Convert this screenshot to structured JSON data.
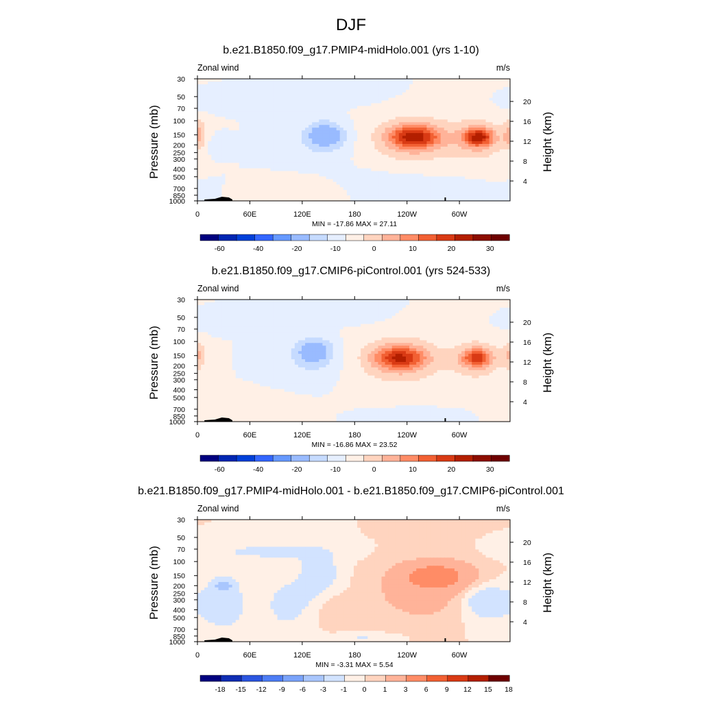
{
  "figure_title": "DJF",
  "colors": {
    "full": [
      "#00007f",
      "#0026b2",
      "#0040d9",
      "#3366ff",
      "#6699ff",
      "#99bbff",
      "#c6dbff",
      "#e6efff",
      "#fff0e6",
      "#ffd4bf",
      "#ffb399",
      "#ff8c66",
      "#f26033",
      "#d93a14",
      "#b31f00",
      "#8c0d00",
      "#6e0000"
    ],
    "diff": [
      "#00007f",
      "#0f2db3",
      "#2b55e0",
      "#4d7df5",
      "#7aa3fa",
      "#a9c6fd",
      "#d2e3ff",
      "#fff0e6",
      "#ffd4bf",
      "#ffb399",
      "#ff8c66",
      "#f26033",
      "#d93a14",
      "#b31f00",
      "#6e0000"
    ]
  },
  "chart_data": [
    {
      "type": "contour",
      "title": "b.e21.B1850.f09_g17.PMIP4-midHolo.001 (yrs 1-10)",
      "variable": "Zonal wind",
      "units": "m/s",
      "ylabel": "Pressure (mb)",
      "y2label": "Height (km)",
      "x_ticks": [
        "0",
        "60E",
        "120E",
        "180",
        "120W",
        "60W"
      ],
      "y_ticks": [
        "30",
        "50",
        "70",
        "100",
        "150",
        "200",
        "250",
        "300",
        "400",
        "500",
        "700",
        "850",
        "1000"
      ],
      "y2_ticks": [
        "20",
        "16",
        "12",
        "8",
        "4"
      ],
      "stats": "MIN = -17.86  MAX =  27.11",
      "cb_labels": [
        "-60",
        "-40",
        "-20",
        "-10",
        "0",
        "10",
        "20",
        "30"
      ],
      "palette": "full",
      "features": [
        {
          "lon": 147,
          "p": 150,
          "rx": 20,
          "rp": 0.35,
          "v": -14
        },
        {
          "lon": 140,
          "p": 180,
          "rx": 34,
          "rp": 0.55,
          "v": -5
        },
        {
          "lon": 248,
          "p": 160,
          "rx": 28,
          "rp": 0.32,
          "v": 25
        },
        {
          "lon": 248,
          "p": 170,
          "rx": 50,
          "rp": 0.75,
          "v": 10
        },
        {
          "lon": 322,
          "p": 160,
          "rx": 16,
          "rp": 0.25,
          "v": 24
        },
        {
          "lon": 322,
          "p": 170,
          "rx": 30,
          "rp": 0.6,
          "v": 10
        },
        {
          "lon": 0,
          "p": 150,
          "rx": 10,
          "rp": 0.4,
          "v": 12
        },
        {
          "lon": 128,
          "p": 750,
          "rx": 40,
          "rp": 0.35,
          "v": 4
        },
        {
          "lon": 190,
          "p": 40,
          "rx": 30,
          "rp": 0.35,
          "v": -4
        },
        {
          "lon": 20,
          "p": 200,
          "rx": 12,
          "rp": 0.25,
          "v": -3
        },
        {
          "lon": 220,
          "p": 620,
          "rx": 70,
          "rp": 0.4,
          "v": -3
        },
        {
          "lon": 20,
          "p": 60,
          "rx": 30,
          "rp": 0.2,
          "v": -3
        }
      ]
    },
    {
      "type": "contour",
      "title": "b.e21.B1850.f09_g17.CMIP6-piControl.001 (yrs 524-533)",
      "variable": "Zonal wind",
      "units": "m/s",
      "ylabel": "Pressure (mb)",
      "y2label": "Height (km)",
      "x_ticks": [
        "0",
        "60E",
        "120E",
        "180",
        "120W",
        "60W"
      ],
      "y_ticks": [
        "30",
        "50",
        "70",
        "100",
        "150",
        "200",
        "250",
        "300",
        "400",
        "500",
        "700",
        "850",
        "1000"
      ],
      "y2_ticks": [
        "20",
        "16",
        "12",
        "8",
        "4"
      ],
      "stats": "MIN = -16.86  MAX =  23.52",
      "cb_labels": [
        "-60",
        "-40",
        "-20",
        "-10",
        "0",
        "10",
        "20",
        "30"
      ],
      "palette": "full",
      "features": [
        {
          "lon": 134,
          "p": 130,
          "rx": 20,
          "rp": 0.35,
          "v": -13
        },
        {
          "lon": 130,
          "p": 170,
          "rx": 34,
          "rp": 0.55,
          "v": -5
        },
        {
          "lon": 232,
          "p": 160,
          "rx": 28,
          "rp": 0.32,
          "v": 22
        },
        {
          "lon": 232,
          "p": 170,
          "rx": 50,
          "rp": 0.75,
          "v": 10
        },
        {
          "lon": 320,
          "p": 160,
          "rx": 16,
          "rp": 0.25,
          "v": 20
        },
        {
          "lon": 320,
          "p": 170,
          "rx": 30,
          "rp": 0.6,
          "v": 9
        },
        {
          "lon": 0,
          "p": 150,
          "rx": 10,
          "rp": 0.4,
          "v": 10
        },
        {
          "lon": 60,
          "p": 700,
          "rx": 50,
          "rp": 0.35,
          "v": 3
        },
        {
          "lon": 185,
          "p": 40,
          "rx": 30,
          "rp": 0.35,
          "v": -4
        },
        {
          "lon": 240,
          "p": 860,
          "rx": 40,
          "rp": 0.2,
          "v": -3
        },
        {
          "lon": 20,
          "p": 60,
          "rx": 30,
          "rp": 0.2,
          "v": -3
        }
      ]
    },
    {
      "type": "contour",
      "title": "b.e21.B1850.f09_g17.PMIP4-midHolo.001 - b.e21.B1850.f09_g17.CMIP6-piControl.001",
      "variable": "Zonal wind",
      "units": "m/s",
      "ylabel": "Pressure (mb)",
      "y2label": "Height (km)",
      "x_ticks": [
        "0",
        "60E",
        "120E",
        "180",
        "120W",
        "60W"
      ],
      "y_ticks": [
        "30",
        "50",
        "70",
        "100",
        "150",
        "200",
        "250",
        "300",
        "400",
        "500",
        "700",
        "850",
        "1000"
      ],
      "y2_ticks": [
        "20",
        "16",
        "12",
        "8",
        "4"
      ],
      "stats": "MIN = -3.31  MAX =  5.54",
      "cb_labels": [
        "-18",
        "-15",
        "-12",
        "-9",
        "-6",
        "-3",
        "-1",
        "0",
        "1",
        "3",
        "6",
        "9",
        "12",
        "15",
        "18"
      ],
      "palette": "diff",
      "features": [
        {
          "lon": 275,
          "p": 150,
          "rx": 40,
          "rp": 0.4,
          "v": 3.5
        },
        {
          "lon": 260,
          "p": 250,
          "rx": 65,
          "rp": 0.9,
          "v": 1.6
        },
        {
          "lon": 30,
          "p": 200,
          "rx": 12,
          "rp": 0.2,
          "v": -3.2
        },
        {
          "lon": 30,
          "p": 350,
          "rx": 30,
          "rp": 0.8,
          "v": -1.7
        },
        {
          "lon": 140,
          "p": 130,
          "rx": 15,
          "rp": 0.4,
          "v": -1.8
        },
        {
          "lon": 140,
          "p": 200,
          "rx": 30,
          "rp": 0.9,
          "v": -1.2
        },
        {
          "lon": 330,
          "p": 300,
          "rx": 25,
          "rp": 0.4,
          "v": -1.8
        },
        {
          "lon": 330,
          "p": 350,
          "rx": 32,
          "rp": 0.7,
          "v": -1.2
        },
        {
          "lon": 100,
          "p": 350,
          "rx": 25,
          "rp": 0.8,
          "v": -1.3
        },
        {
          "lon": 80,
          "p": 75,
          "rx": 80,
          "rp": 0.3,
          "v": -1.2
        },
        {
          "lon": 155,
          "p": 400,
          "rx": 18,
          "rp": 0.5,
          "v": 1.3
        },
        {
          "lon": 190,
          "p": 900,
          "rx": 40,
          "rp": 0.15,
          "v": -1.1
        }
      ]
    }
  ]
}
